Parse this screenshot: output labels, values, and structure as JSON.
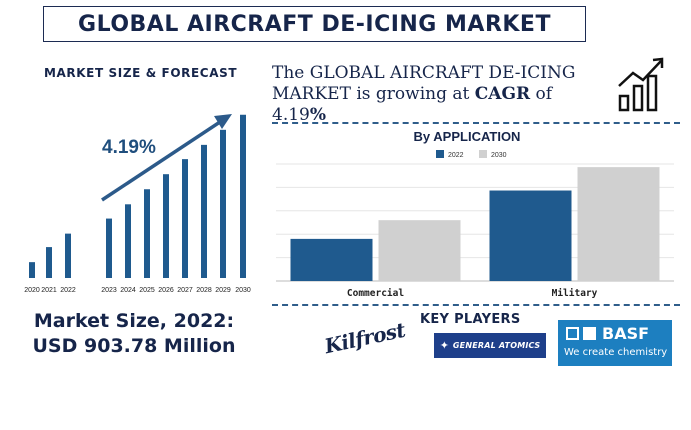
{
  "title": "GLOBAL AIRCRAFT DE-ICING MARKET",
  "market_size_forecast_label": "MARKET SIZE & FORECAST",
  "headline": {
    "prefix": "The GLOBAL AIRCRAFT DE-ICING MARKET is growing at ",
    "cagr_label": "CAGR",
    "of_text": " of ",
    "rate": "4.19",
    "percent": "%"
  },
  "market_size": {
    "line1": "Market Size, 2022:",
    "line2": "USD 903.78 Million"
  },
  "key_players": {
    "heading": "KEY PLAYERS",
    "companies": [
      {
        "name": "Kilfrost"
      },
      {
        "name": "GENERAL ATOMICS"
      },
      {
        "name": "BASF",
        "tagline": "We create chemistry"
      }
    ]
  },
  "icons": [
    "growth-trend-icon",
    "general-atomics-star-icon",
    "basf-squares-icon"
  ],
  "colors": {
    "navy": "#16254a",
    "bar_blue": "#1f5a8e",
    "bar_grey": "#d0d0d0",
    "basf_blue": "#1d7fc0",
    "ga_blue": "#1e3f8a"
  },
  "chart_data": [
    {
      "type": "bar",
      "title": "",
      "categories": [
        "2020",
        "2021",
        "2022",
        "2023",
        "2024",
        "2025",
        "2026",
        "2027",
        "2028",
        "2029",
        "2030"
      ],
      "values": [
        1.0,
        1.95,
        2.8,
        3.75,
        4.65,
        5.6,
        6.55,
        7.5,
        8.4,
        9.35,
        10.3
      ],
      "annotation": "4.19%",
      "ylim": [
        0,
        10.6
      ],
      "grid": false
    },
    {
      "type": "bar",
      "title": "By APPLICATION",
      "categories": [
        "Commercial",
        "Military"
      ],
      "series": [
        {
          "name": "2022",
          "values": [
            27,
            58
          ]
        },
        {
          "name": "2030",
          "values": [
            39,
            73
          ]
        }
      ],
      "ylim": [
        0,
        75
      ],
      "grid": true,
      "legend": "top-center"
    }
  ]
}
